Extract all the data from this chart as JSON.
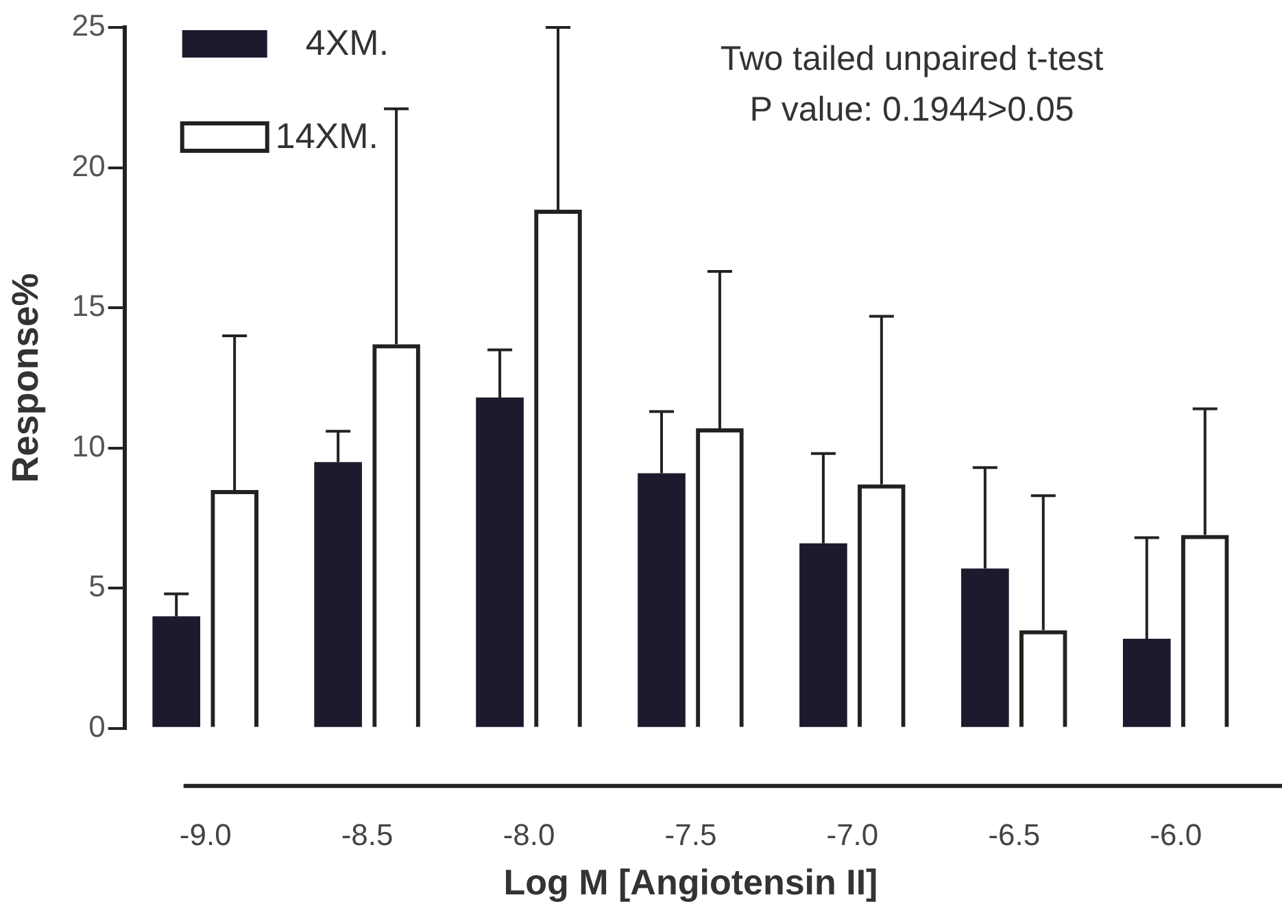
{
  "chart_data": {
    "type": "bar",
    "xlabel": "Log M [Angiotensin II]",
    "ylabel": "Response%",
    "categories": [
      "-9.0",
      "-8.5",
      "-8.0",
      "-7.5",
      "-7.0",
      "-6.5",
      "-6.0"
    ],
    "series": [
      {
        "name": "4XM.",
        "color": "#1c1a2c",
        "values": [
          4.0,
          9.5,
          11.8,
          9.1,
          6.6,
          5.7,
          3.2
        ],
        "errors": [
          [
            4.0,
            4.8
          ],
          [
            9.5,
            10.6
          ],
          [
            11.8,
            13.5
          ],
          [
            9.1,
            11.3
          ],
          [
            6.6,
            9.8
          ],
          [
            5.7,
            9.3
          ],
          [
            3.2,
            6.8
          ]
        ]
      },
      {
        "name": "14XM.",
        "color": "#222222",
        "values": [
          8.5,
          13.7,
          18.5,
          10.7,
          8.7,
          3.5,
          6.9
        ],
        "errors": [
          [
            8.5,
            14.0
          ],
          [
            13.7,
            22.1
          ],
          [
            18.5,
            25.0
          ],
          [
            10.7,
            16.3
          ],
          [
            8.7,
            14.7
          ],
          [
            3.5,
            8.3
          ],
          [
            6.9,
            11.4
          ]
        ]
      }
    ],
    "ylim": [
      0,
      25
    ],
    "yticks": [
      0,
      5,
      10,
      15,
      20,
      25
    ],
    "grid": false,
    "legend": "top left",
    "annotations": [
      "Two tailed unpaired t-test",
      "P value: 0.1944>0.05"
    ]
  }
}
